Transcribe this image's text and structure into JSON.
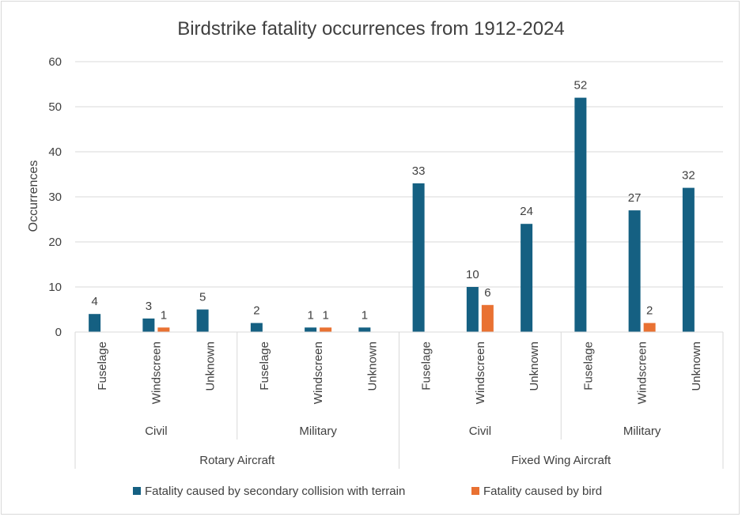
{
  "chart_data": {
    "type": "bar",
    "title": "Birdstrike fatality occurrences from 1912-2024",
    "ylabel": "Occurrences",
    "xlabel": "",
    "ylim": [
      0,
      60
    ],
    "yticks": [
      0,
      10,
      20,
      30,
      40,
      50,
      60
    ],
    "grid": true,
    "legend_position": "bottom",
    "categories": [
      "Fuselage",
      "Windscreen",
      "Unknown",
      "Fuselage",
      "Windscreen",
      "Unknown",
      "Fuselage",
      "Windscreen",
      "Unknown",
      "Fuselage",
      "Windscreen",
      "Unknown"
    ],
    "subgroups": [
      {
        "label": "Civil",
        "span": 3
      },
      {
        "label": "Military",
        "span": 3
      },
      {
        "label": "Civil",
        "span": 3
      },
      {
        "label": "Military",
        "span": 3
      }
    ],
    "groups": [
      {
        "label": "Rotary Aircraft",
        "span": 6
      },
      {
        "label": "Fixed Wing Aircraft",
        "span": 6
      }
    ],
    "series": [
      {
        "name": "Fatality caused by secondary collision with terrain",
        "color": "#156082",
        "values": [
          4,
          3,
          5,
          2,
          1,
          1,
          33,
          10,
          24,
          52,
          27,
          32
        ]
      },
      {
        "name": "Fatality caused by bird",
        "color": "#E97132",
        "values": [
          null,
          1,
          null,
          null,
          1,
          null,
          null,
          6,
          null,
          null,
          2,
          null
        ]
      }
    ]
  }
}
